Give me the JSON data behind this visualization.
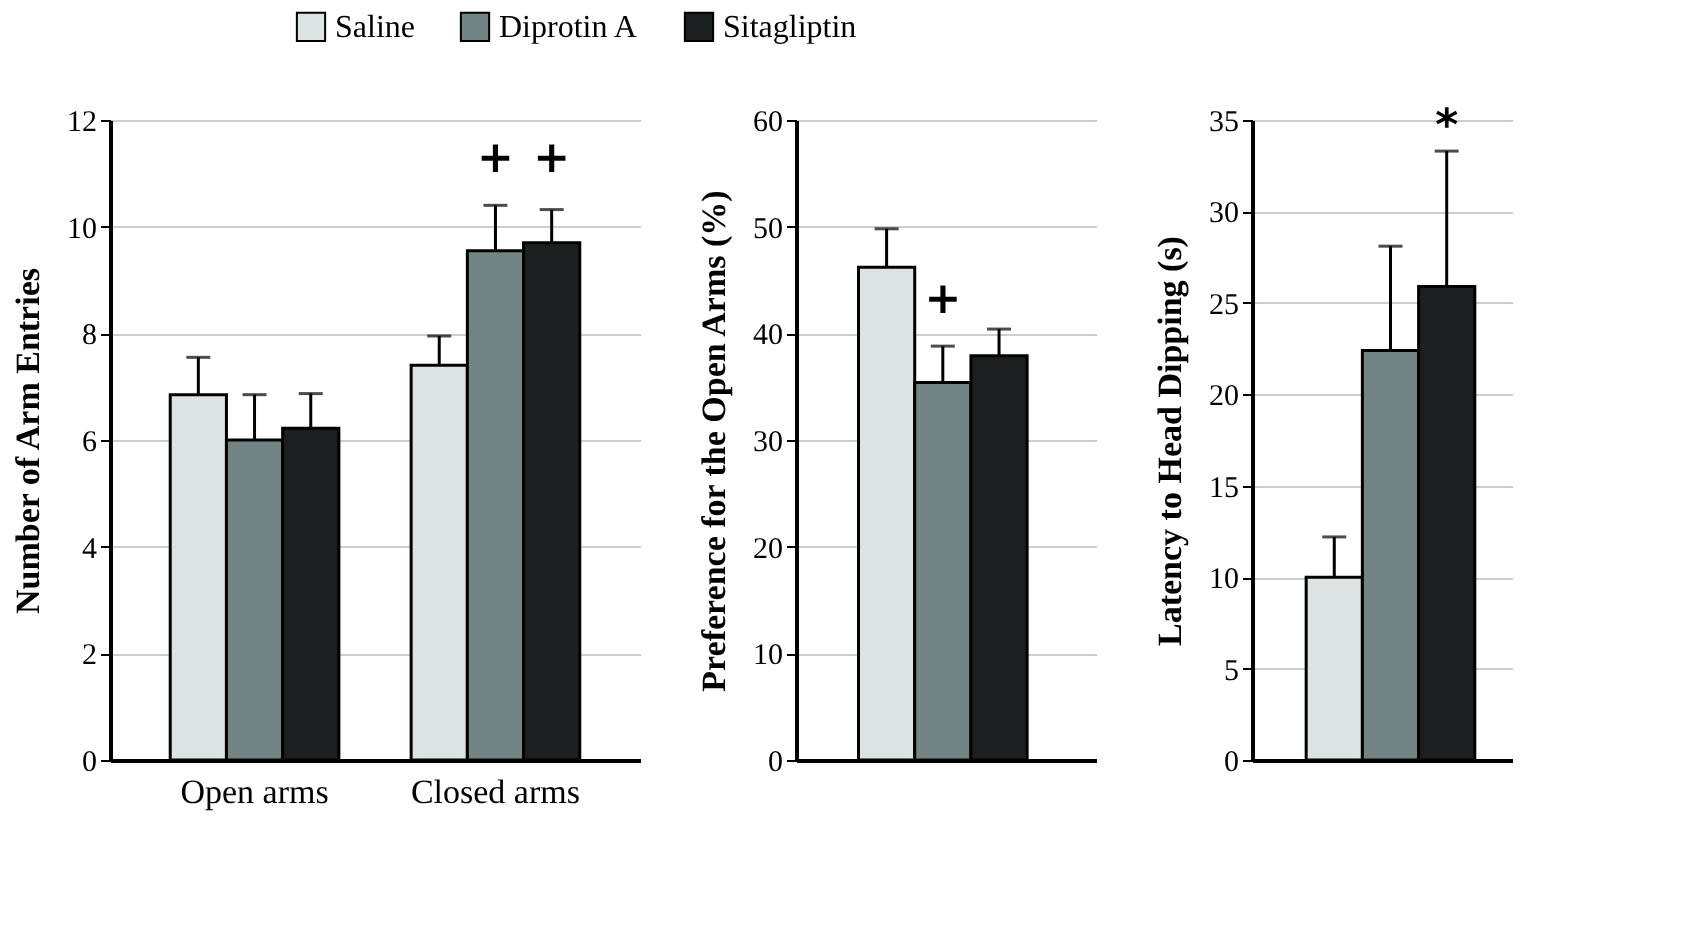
{
  "chart_data": [
    {
      "type": "bar",
      "categories": [
        "Open arms",
        "Closed arms"
      ],
      "ylabel": "Number of Arm Entries",
      "ylim": [
        0,
        12
      ],
      "yticks": [
        0,
        2,
        4,
        6,
        8,
        10,
        12
      ],
      "grid": "y",
      "legend": "top",
      "series": [
        {
          "name": "Saline",
          "color": "#dde3e2",
          "values": [
            6.85,
            7.4
          ],
          "errors": [
            0.7,
            0.55
          ]
        },
        {
          "name": "Diprotin A",
          "color": "#738485",
          "values": [
            6.0,
            9.55
          ],
          "errors": [
            0.85,
            0.85
          ]
        },
        {
          "name": "Sitagliptin",
          "color": "#1b1f1f",
          "values": [
            6.22,
            9.7
          ],
          "errors": [
            0.65,
            0.62
          ]
        }
      ],
      "annotations": [
        "+",
        "+"
      ]
    },
    {
      "type": "bar",
      "categories": [
        null
      ],
      "ylabel": "Preference for the Open Arms (%)",
      "ylim": [
        0,
        60
      ],
      "yticks": [
        0,
        10,
        20,
        30,
        40,
        50,
        60
      ],
      "grid": "y",
      "series": [
        {
          "name": "Saline",
          "color": "#dde3e2",
          "values": [
            46.2
          ],
          "errors": [
            3.6
          ]
        },
        {
          "name": "Diprotin A",
          "color": "#738485",
          "values": [
            35.4
          ],
          "errors": [
            3.4
          ]
        },
        {
          "name": "Sitagliptin",
          "color": "#1b1f1f",
          "values": [
            37.9
          ],
          "errors": [
            2.5
          ]
        }
      ],
      "annotations": [
        "+"
      ]
    },
    {
      "type": "bar",
      "categories": [
        null
      ],
      "ylabel": "Latency to Head Dipping (s)",
      "ylim": [
        0,
        35
      ],
      "yticks": [
        0,
        5,
        10,
        15,
        20,
        25,
        30,
        35
      ],
      "grid": "y",
      "series": [
        {
          "name": "Saline",
          "color": "#dde3e2",
          "values": [
            10.0
          ],
          "errors": [
            2.2
          ]
        },
        {
          "name": "Diprotin A",
          "color": "#738485",
          "values": [
            22.4
          ],
          "errors": [
            5.7
          ]
        },
        {
          "name": "Sitagliptin",
          "color": "#1b1f1f",
          "values": [
            25.9
          ],
          "errors": [
            7.4
          ]
        }
      ],
      "annotations": [
        "*"
      ]
    }
  ]
}
